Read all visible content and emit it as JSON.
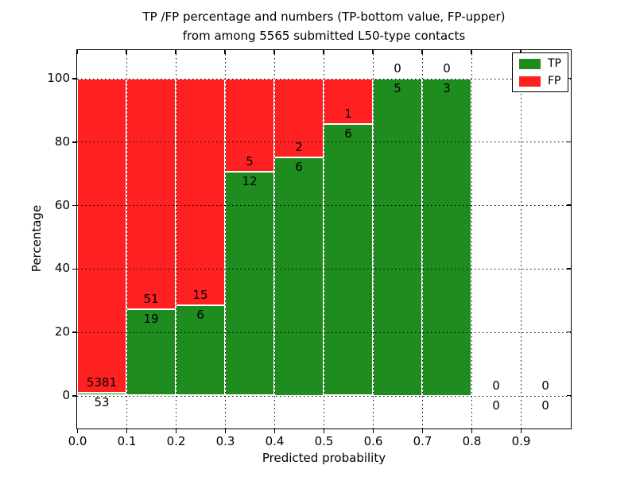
{
  "figure": {
    "title_line1": "TP /FP percentage and numbers (TP-bottom value, FP-upper)",
    "title_line2": "from among 5565 submitted L50-type contacts"
  },
  "chart_data": {
    "type": "bar",
    "stacked": true,
    "orientation": "vertical",
    "title": "TP /FP percentage and numbers (TP-bottom value, FP-upper) from among 5565 submitted L50-type contacts",
    "xlabel": "Predicted probability",
    "ylabel": "Percentage",
    "total_submitted": 5565,
    "contact_type": "L50-type",
    "xlim": [
      0.0,
      1.0
    ],
    "ylim": [
      -10.5,
      109.5
    ],
    "grid": true,
    "x_ticks": [
      {
        "value": 0.0,
        "label": "0.0"
      },
      {
        "value": 0.1,
        "label": "0.1"
      },
      {
        "value": 0.2,
        "label": "0.2"
      },
      {
        "value": 0.3,
        "label": "0.3"
      },
      {
        "value": 0.4,
        "label": "0.4"
      },
      {
        "value": 0.5,
        "label": "0.5"
      },
      {
        "value": 0.6,
        "label": "0.6"
      },
      {
        "value": 0.7,
        "label": "0.7"
      },
      {
        "value": 0.8,
        "label": "0.8"
      },
      {
        "value": 0.9,
        "label": "0.9"
      }
    ],
    "y_ticks": [
      {
        "value": 0,
        "label": "0"
      },
      {
        "value": 20,
        "label": "20"
      },
      {
        "value": 40,
        "label": "40"
      },
      {
        "value": 60,
        "label": "60"
      },
      {
        "value": 80,
        "label": "80"
      },
      {
        "value": 100,
        "label": "100"
      }
    ],
    "colors": {
      "tp": "#1f8c1f",
      "fp": "#ff2121"
    },
    "legend": {
      "position": "upper right",
      "items": [
        {
          "name": "TP",
          "color": "#1f8c1f"
        },
        {
          "name": "FP",
          "color": "#ff2121"
        }
      ]
    },
    "bin_width": 0.1,
    "bins": [
      {
        "x_start": 0.0,
        "x_end": 0.1,
        "tp_count": 53,
        "fp_count": 5381,
        "tp_pct": 0.98,
        "fp_pct": 99.02
      },
      {
        "x_start": 0.1,
        "x_end": 0.2,
        "tp_count": 19,
        "fp_count": 51,
        "tp_pct": 27.14,
        "fp_pct": 72.86
      },
      {
        "x_start": 0.2,
        "x_end": 0.3,
        "tp_count": 6,
        "fp_count": 15,
        "tp_pct": 28.57,
        "fp_pct": 71.43
      },
      {
        "x_start": 0.3,
        "x_end": 0.4,
        "tp_count": 12,
        "fp_count": 5,
        "tp_pct": 70.59,
        "fp_pct": 29.41
      },
      {
        "x_start": 0.4,
        "x_end": 0.5,
        "tp_count": 6,
        "fp_count": 2,
        "tp_pct": 75.0,
        "fp_pct": 25.0
      },
      {
        "x_start": 0.5,
        "x_end": 0.6,
        "tp_count": 6,
        "fp_count": 1,
        "tp_pct": 85.71,
        "fp_pct": 14.29
      },
      {
        "x_start": 0.6,
        "x_end": 0.7,
        "tp_count": 5,
        "fp_count": 0,
        "tp_pct": 100.0,
        "fp_pct": 0.0
      },
      {
        "x_start": 0.7,
        "x_end": 0.8,
        "tp_count": 3,
        "fp_count": 0,
        "tp_pct": 100.0,
        "fp_pct": 0.0
      },
      {
        "x_start": 0.8,
        "x_end": 0.9,
        "tp_count": 0,
        "fp_count": 0,
        "tp_pct": 0.0,
        "fp_pct": 0.0
      },
      {
        "x_start": 0.9,
        "x_end": 1.0,
        "tp_count": 0,
        "fp_count": 0,
        "tp_pct": 0.0,
        "fp_pct": 0.0
      }
    ]
  }
}
